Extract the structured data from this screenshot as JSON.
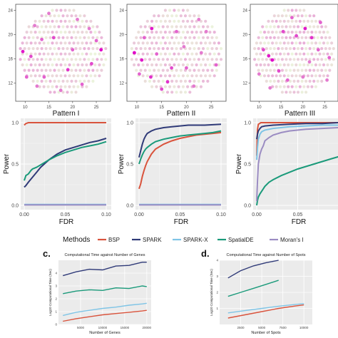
{
  "chart_data": [
    {
      "type": "scatter",
      "panel": "spatial-top-1",
      "xlim": [
        8,
        28
      ],
      "ylim": [
        9,
        25
      ],
      "x_ticks": [
        "10",
        "15",
        "20",
        "25"
      ],
      "y_ticks": [
        "12",
        "16",
        "20",
        "24"
      ],
      "color_low": "#e8f4d6",
      "color_high": "#e000c8",
      "highlight_points": [
        [
          9.5,
          17.2,
          0.9
        ],
        [
          11.2,
          16.4,
          0.7
        ],
        [
          12,
          21.5,
          0.5
        ],
        [
          14,
          13,
          0.6
        ],
        [
          16,
          19.5,
          0.7
        ],
        [
          19,
          14.2,
          0.8
        ],
        [
          22,
          11.8,
          0.6
        ],
        [
          26,
          17.5,
          1.0
        ],
        [
          25,
          19,
          0.6
        ],
        [
          21,
          22.5,
          0.5
        ],
        [
          13.5,
          19.2,
          0.6
        ],
        [
          17.5,
          10.8,
          0.5
        ],
        [
          10.3,
          13,
          0.6
        ],
        [
          24,
          15.2,
          0.7
        ],
        [
          15,
          23.5,
          0.5
        ],
        [
          20,
          17.5,
          0.6
        ],
        [
          23.5,
          21,
          0.5
        ],
        [
          12.5,
          11.5,
          0.5
        ]
      ]
    },
    {
      "type": "scatter",
      "panel": "spatial-top-2",
      "xlim": [
        8,
        28
      ],
      "ylim": [
        9,
        25
      ],
      "x_ticks": [
        "10",
        "15",
        "20",
        "25"
      ],
      "y_ticks": [
        "12",
        "16",
        "20",
        "24"
      ],
      "color_low": "#e8f4d6",
      "color_high": "#e000c8",
      "highlight_points": [
        [
          9.5,
          17,
          1.0
        ],
        [
          11,
          15.8,
          0.9
        ],
        [
          12.8,
          13,
          0.8
        ],
        [
          16.2,
          12.2,
          0.8
        ],
        [
          20,
          14.5,
          0.6
        ],
        [
          13,
          21,
          0.9
        ],
        [
          11.5,
          19.5,
          0.6
        ],
        [
          15,
          11,
          0.7
        ],
        [
          18,
          20.5,
          0.6
        ],
        [
          17,
          14.5,
          0.7
        ],
        [
          23,
          17,
          0.5
        ],
        [
          26,
          15,
          0.6
        ],
        [
          21.5,
          11.5,
          0.5
        ],
        [
          10.5,
          13.5,
          0.6
        ],
        [
          24,
          20.5,
          0.5
        ],
        [
          14,
          16.8,
          0.6
        ],
        [
          19.5,
          18,
          0.5
        ],
        [
          22.5,
          22.5,
          0.5
        ]
      ]
    },
    {
      "type": "scatter",
      "panel": "spatial-top-3",
      "xlim": [
        8,
        28
      ],
      "ylim": [
        9,
        25
      ],
      "x_ticks": [
        "10",
        "15",
        "20",
        "25"
      ],
      "y_ticks": [
        "12",
        "16",
        "20",
        "24"
      ],
      "color_low": "#e8f4d6",
      "color_high": "#e000c8",
      "highlight_points": [
        [
          13,
          15.8,
          1.0
        ],
        [
          12.2,
          16.5,
          0.9
        ],
        [
          11,
          17.5,
          0.7
        ],
        [
          20.5,
          21,
          0.9
        ],
        [
          22,
          19.5,
          0.8
        ],
        [
          18.5,
          19.8,
          0.7
        ],
        [
          14.5,
          14,
          0.7
        ],
        [
          26,
          16.2,
          0.6
        ],
        [
          24,
          22,
          0.6
        ],
        [
          16.5,
          12.5,
          0.6
        ],
        [
          20,
          13,
          0.5
        ],
        [
          10,
          13.5,
          0.5
        ],
        [
          17.5,
          22.8,
          0.6
        ],
        [
          23.5,
          17.5,
          0.6
        ],
        [
          15.5,
          20.5,
          0.7
        ],
        [
          12.5,
          11.2,
          0.5
        ],
        [
          21.5,
          15.5,
          0.5
        ],
        [
          25.5,
          12.5,
          0.5
        ]
      ]
    },
    {
      "type": "line",
      "panel": "power-1",
      "title": "Pattern I",
      "xlabel": "FDR",
      "ylabel": "Power",
      "xlim": [
        0,
        0.1
      ],
      "ylim": [
        0,
        1
      ],
      "x_ticks": [
        "0.00",
        "0.05",
        "0.10"
      ],
      "y_ticks": [
        "0.0",
        "0.5",
        "1.0"
      ],
      "series": [
        {
          "name": "BSP",
          "color": "#d9533c",
          "x": [
            0,
            0.002,
            0.005,
            0.01,
            0.02,
            0.05,
            0.1
          ],
          "y": [
            0.97,
            0.99,
            1.0,
            1.0,
            1.0,
            1.0,
            1.0
          ]
        },
        {
          "name": "SPARK",
          "color": "#2f3a78",
          "x": [
            0,
            0.002,
            0.005,
            0.01,
            0.015,
            0.02,
            0.03,
            0.04,
            0.05,
            0.06,
            0.07,
            0.08,
            0.09,
            0.1
          ],
          "y": [
            0.22,
            0.24,
            0.28,
            0.34,
            0.4,
            0.46,
            0.55,
            0.62,
            0.67,
            0.7,
            0.73,
            0.76,
            0.78,
            0.81
          ]
        },
        {
          "name": "SPARK-X",
          "color": "#7ec4e6",
          "x": [
            0,
            0.005,
            0.01,
            0.02,
            0.03,
            0.05,
            0.1
          ],
          "y": [
            0.01,
            0.01,
            0.01,
            0.01,
            0.01,
            0.01,
            0.01
          ]
        },
        {
          "name": "SpatialDE",
          "color": "#1a9a7a",
          "x": [
            0,
            0.002,
            0.005,
            0.008,
            0.01,
            0.015,
            0.02,
            0.03,
            0.04,
            0.05,
            0.06,
            0.07,
            0.08,
            0.09,
            0.1
          ],
          "y": [
            0.3,
            0.36,
            0.38,
            0.42,
            0.44,
            0.46,
            0.49,
            0.55,
            0.6,
            0.64,
            0.67,
            0.7,
            0.72,
            0.74,
            0.77
          ]
        },
        {
          "name": "Moran's I",
          "color": "#9b8cc2",
          "x": [
            0,
            0.05,
            0.1
          ],
          "y": [
            0.005,
            0.005,
            0.005
          ]
        }
      ]
    },
    {
      "type": "line",
      "panel": "power-2",
      "title": "Pattern II",
      "xlabel": "FDR",
      "ylabel": "Power",
      "xlim": [
        0,
        0.1
      ],
      "ylim": [
        0,
        1
      ],
      "x_ticks": [
        "0.00",
        "0.05",
        "0.10"
      ],
      "y_ticks": [
        "0.0",
        "0.5",
        "1.0"
      ],
      "series": [
        {
          "name": "BSP",
          "color": "#d9533c",
          "x": [
            0,
            0.002,
            0.004,
            0.006,
            0.008,
            0.01,
            0.015,
            0.02,
            0.03,
            0.04,
            0.05,
            0.06,
            0.07,
            0.08,
            0.09,
            0.1
          ],
          "y": [
            0.2,
            0.26,
            0.35,
            0.42,
            0.48,
            0.53,
            0.62,
            0.68,
            0.74,
            0.78,
            0.81,
            0.83,
            0.85,
            0.86,
            0.87,
            0.88
          ]
        },
        {
          "name": "SPARK",
          "color": "#2f3a78",
          "x": [
            0,
            0.002,
            0.004,
            0.006,
            0.008,
            0.01,
            0.015,
            0.02,
            0.03,
            0.04,
            0.05,
            0.06,
            0.08,
            0.1
          ],
          "y": [
            0.58,
            0.66,
            0.74,
            0.8,
            0.84,
            0.87,
            0.9,
            0.92,
            0.94,
            0.95,
            0.96,
            0.97,
            0.97,
            0.98
          ]
        },
        {
          "name": "SPARK-X",
          "color": "#7ec4e6",
          "x": [
            0,
            0.05,
            0.1
          ],
          "y": [
            0.01,
            0.01,
            0.01
          ]
        },
        {
          "name": "SpatialDE",
          "color": "#1a9a7a",
          "x": [
            0,
            0.002,
            0.004,
            0.006,
            0.008,
            0.01,
            0.015,
            0.02,
            0.03,
            0.04,
            0.05,
            0.06,
            0.07,
            0.08,
            0.09,
            0.1
          ],
          "y": [
            0.5,
            0.56,
            0.61,
            0.65,
            0.68,
            0.7,
            0.74,
            0.77,
            0.8,
            0.82,
            0.84,
            0.85,
            0.86,
            0.87,
            0.88,
            0.9
          ]
        },
        {
          "name": "Moran's I",
          "color": "#9b8cc2",
          "x": [
            0,
            0.05,
            0.1
          ],
          "y": [
            0.005,
            0.005,
            0.005
          ]
        }
      ]
    },
    {
      "type": "line",
      "panel": "power-3",
      "title": "Pattern III",
      "xlabel": "FDR",
      "ylabel": "Power",
      "xlim": [
        0,
        0.1
      ],
      "ylim": [
        0,
        1
      ],
      "x_ticks": [
        "0.00",
        "0.05"
      ],
      "y_ticks": [
        "0.0",
        "0.5",
        "1.0"
      ],
      "series": [
        {
          "name": "BSP",
          "color": "#d9533c",
          "x": [
            0,
            0.001,
            0.002,
            0.005,
            0.1
          ],
          "y": [
            0.6,
            0.92,
            0.98,
            1.0,
            1.0
          ]
        },
        {
          "name": "SPARK",
          "color": "#2f3a78",
          "x": [
            0,
            0.001,
            0.002,
            0.004,
            0.006,
            0.01,
            0.02,
            0.04,
            0.06,
            0.08,
            0.1
          ],
          "y": [
            0.8,
            0.86,
            0.9,
            0.93,
            0.95,
            0.96,
            0.97,
            0.98,
            0.99,
            0.99,
            1.0
          ]
        },
        {
          "name": "SPARK-X",
          "color": "#7ec4e6",
          "x": [
            0,
            0.001,
            0.002,
            0.004,
            0.006,
            0.01,
            0.02,
            0.04,
            0.06,
            0.08,
            0.1
          ],
          "y": [
            0.55,
            0.7,
            0.8,
            0.86,
            0.89,
            0.91,
            0.93,
            0.95,
            0.96,
            0.97,
            0.97
          ]
        },
        {
          "name": "SpatialDE",
          "color": "#1a9a7a",
          "x": [
            0,
            0.001,
            0.002,
            0.004,
            0.006,
            0.008,
            0.01,
            0.015,
            0.02,
            0.03,
            0.04,
            0.05,
            0.06,
            0.07,
            0.08,
            0.09,
            0.1
          ],
          "y": [
            0.0,
            0.06,
            0.1,
            0.14,
            0.17,
            0.2,
            0.23,
            0.28,
            0.31,
            0.36,
            0.4,
            0.44,
            0.47,
            0.5,
            0.53,
            0.56,
            0.59
          ]
        },
        {
          "name": "Moran's I",
          "color": "#9b8cc2",
          "x": [
            0,
            0.001,
            0.002,
            0.004,
            0.006,
            0.008,
            0.01,
            0.015,
            0.02,
            0.03,
            0.04,
            0.06,
            0.08,
            0.1
          ],
          "y": [
            0.05,
            0.3,
            0.5,
            0.62,
            0.68,
            0.72,
            0.78,
            0.82,
            0.85,
            0.88,
            0.9,
            0.92,
            0.93,
            0.94
          ]
        }
      ]
    },
    {
      "type": "line",
      "panel": "time-genes",
      "label": "c.",
      "title": "Computational Time against Number of Genes",
      "xlabel": "Number of Genes",
      "ylabel": "Log10 Computational Time (Sec)",
      "xlim": [
        0,
        21000
      ],
      "ylim": [
        0,
        5
      ],
      "x_ticks": [
        "5000",
        "10000",
        "15000",
        "20000"
      ],
      "y_ticks": [
        "0",
        "1",
        "2",
        "3",
        "4"
      ],
      "series": [
        {
          "name": "SPARK",
          "color": "#2f3a78",
          "x": [
            1000,
            4000,
            7000,
            10000,
            13000,
            16000,
            19000,
            20000
          ],
          "y": [
            3.8,
            4.1,
            4.3,
            4.25,
            4.55,
            4.6,
            4.85,
            4.85
          ]
        },
        {
          "name": "SpatialDE",
          "color": "#1a9a7a",
          "x": [
            1000,
            4000,
            7000,
            10000,
            13000,
            16000,
            19000,
            20000
          ],
          "y": [
            2.4,
            2.6,
            2.7,
            2.65,
            2.85,
            2.8,
            3.0,
            2.95
          ]
        },
        {
          "name": "SPARK-X",
          "color": "#7ec4e6",
          "x": [
            1000,
            4000,
            7000,
            10000,
            13000,
            16000,
            19000,
            20000
          ],
          "y": [
            0.7,
            0.95,
            1.1,
            1.25,
            1.35,
            1.5,
            1.6,
            1.65
          ]
        },
        {
          "name": "BSP",
          "color": "#d9533c",
          "x": [
            1000,
            4000,
            7000,
            10000,
            13000,
            16000,
            19000,
            20000
          ],
          "y": [
            0.25,
            0.45,
            0.6,
            0.75,
            0.85,
            0.95,
            1.05,
            1.1
          ]
        }
      ]
    },
    {
      "type": "line",
      "panel": "time-spots",
      "label": "d.",
      "title": "Computational Time against Number of Spots",
      "xlabel": "Number of Spots",
      "ylabel": "Log10 Computational Time (Sec)",
      "xlim": [
        0,
        11000
      ],
      "ylim": [
        0,
        4
      ],
      "x_ticks": [
        "2500",
        "5000",
        "7500",
        "10000"
      ],
      "y_ticks": [
        "1",
        "2",
        "3",
        "4"
      ],
      "series": [
        {
          "name": "SPARK",
          "color": "#2f3a78",
          "x": [
            1000,
            2500,
            4000,
            5500,
            7000
          ],
          "y": [
            2.9,
            3.35,
            3.65,
            3.85,
            4.0
          ]
        },
        {
          "name": "SpatialDE",
          "color": "#1a9a7a",
          "x": [
            1000,
            2500,
            4000,
            5500,
            7000
          ],
          "y": [
            1.75,
            2.0,
            2.25,
            2.5,
            2.75
          ]
        },
        {
          "name": "SPARK-X",
          "color": "#7ec4e6",
          "x": [
            1000,
            3000,
            5000,
            7000,
            9000,
            10000
          ],
          "y": [
            0.72,
            0.86,
            1.0,
            1.14,
            1.25,
            1.3
          ]
        },
        {
          "name": "BSP",
          "color": "#d9533c",
          "x": [
            1000,
            3000,
            5000,
            7000,
            9000,
            10000
          ],
          "y": [
            0.4,
            0.6,
            0.8,
            1.0,
            1.15,
            1.22
          ]
        }
      ]
    }
  ],
  "legend": {
    "title": "Methods",
    "items": [
      {
        "name": "BSP",
        "color": "#d9533c"
      },
      {
        "name": "SPARK",
        "color": "#2f3a78"
      },
      {
        "name": "SPARK-X",
        "color": "#7ec4e6"
      },
      {
        "name": "SpatialDE",
        "color": "#1a9a7a"
      },
      {
        "name": "Moran's I",
        "color": "#9b8cc2"
      }
    ]
  }
}
